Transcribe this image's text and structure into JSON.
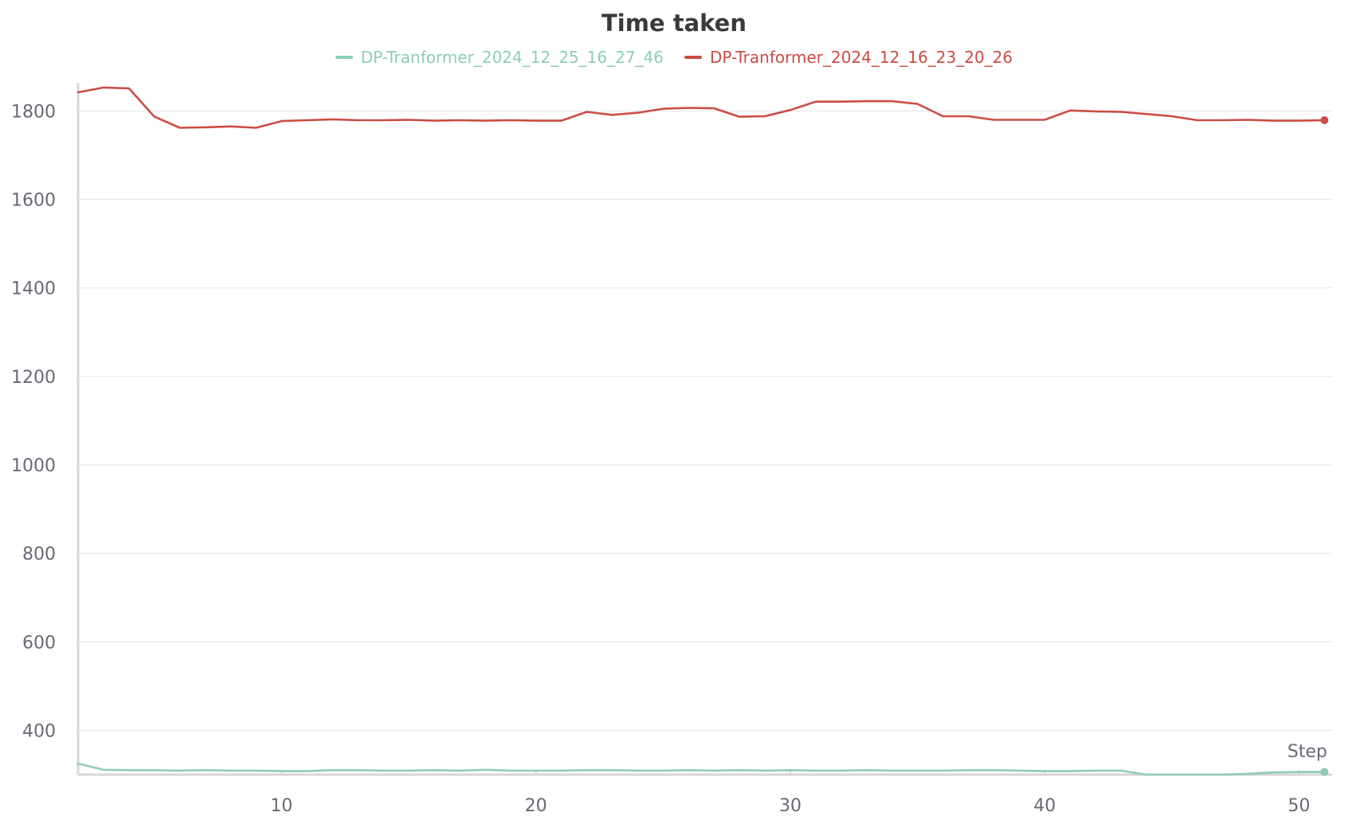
{
  "chart_data": {
    "type": "line",
    "title": "Time taken",
    "xlabel": "Step",
    "ylabel": "",
    "xlim": [
      2,
      51.3
    ],
    "ylim": [
      300,
      1860
    ],
    "x_ticks": [
      10,
      20,
      30,
      40,
      50
    ],
    "y_ticks": [
      400,
      600,
      800,
      1000,
      1200,
      1400,
      1600,
      1800
    ],
    "grid": true,
    "legend_position": "top-center",
    "series": [
      {
        "name": "DP-Tranformer_2024_12_25_16_27_46",
        "color": "#8dccb8",
        "x": [
          2,
          3,
          4,
          5,
          6,
          7,
          8,
          9,
          10,
          11,
          12,
          13,
          14,
          15,
          16,
          17,
          18,
          19,
          20,
          21,
          22,
          23,
          24,
          25,
          26,
          27,
          28,
          29,
          30,
          31,
          32,
          33,
          34,
          35,
          36,
          37,
          38,
          39,
          40,
          41,
          42,
          43,
          44,
          45,
          46,
          47,
          48,
          49,
          50,
          51
        ],
        "y": [
          325,
          311,
          310,
          310,
          309,
          310,
          309,
          309,
          308,
          308,
          310,
          310,
          309,
          309,
          310,
          309,
          311,
          309,
          309,
          309,
          310,
          310,
          309,
          309,
          310,
          309,
          310,
          309,
          310,
          309,
          309,
          310,
          309,
          309,
          309,
          310,
          310,
          309,
          308,
          308,
          309,
          309,
          300,
          300,
          300,
          300,
          302,
          305,
          306,
          306
        ]
      },
      {
        "name": "DP-Tranformer_2024_12_16_23_20_26",
        "color": "#cc4c44",
        "x": [
          2,
          3,
          4,
          5,
          6,
          7,
          8,
          9,
          10,
          11,
          12,
          13,
          14,
          15,
          16,
          17,
          18,
          19,
          20,
          21,
          22,
          23,
          24,
          25,
          26,
          27,
          28,
          29,
          30,
          31,
          32,
          33,
          34,
          35,
          36,
          37,
          38,
          39,
          40,
          41,
          42,
          43,
          44,
          45,
          46,
          47,
          48,
          49,
          50,
          51
        ],
        "y": [
          1842,
          1853,
          1851,
          1787,
          1762,
          1763,
          1765,
          1762,
          1777,
          1779,
          1781,
          1779,
          1779,
          1780,
          1778,
          1779,
          1778,
          1779,
          1778,
          1778,
          1798,
          1791,
          1796,
          1805,
          1807,
          1806,
          1787,
          1788,
          1802,
          1821,
          1821,
          1822,
          1822,
          1816,
          1788,
          1788,
          1780,
          1780,
          1780,
          1801,
          1799,
          1798,
          1793,
          1788,
          1779,
          1779,
          1780,
          1778,
          1778,
          1779
        ]
      }
    ]
  }
}
